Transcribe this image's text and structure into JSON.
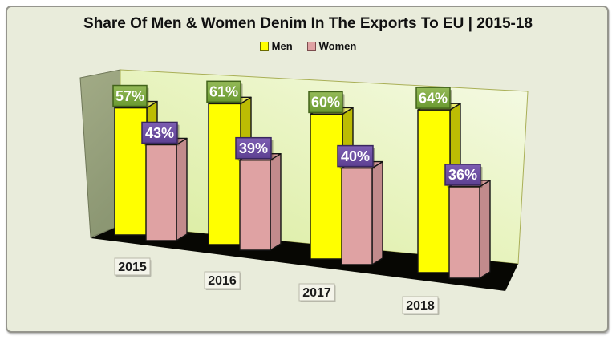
{
  "title": "Share Of Men & Women Denim In The Exports To EU | 2015-18",
  "chart_data": {
    "type": "bar",
    "style": "3d-clustered-perspective",
    "categories": [
      "2015",
      "2016",
      "2017",
      "2018"
    ],
    "series": [
      {
        "name": "Men",
        "values": [
          57,
          61,
          60,
          64
        ],
        "unit": "%",
        "bar_color": "#ffff00",
        "bar_side_color": "#bcbc03",
        "bar_top_color": "#e9e96a",
        "swatch_border": "#6b6b00",
        "label_bg_top": "#94ba58",
        "label_bg_bottom": "#6a9a31",
        "label_border": "#42631a",
        "label_text_color": "#ffffff"
      },
      {
        "name": "Women",
        "values": [
          43,
          39,
          40,
          36
        ],
        "unit": "%",
        "bar_color": "#dfa2a3",
        "bar_side_color": "#c28b8c",
        "bar_top_color": "#d29697",
        "swatch_border": "#7b4c4d",
        "label_bg_top": "#7d5eb2",
        "label_bg_bottom": "#5d4092",
        "label_border": "#39265f",
        "label_text_color": "#ffffff"
      }
    ],
    "value_label_format": "{value}%",
    "legend_position": "top-center",
    "axes_visible": false,
    "gridlines": false,
    "ylim": [
      0,
      100
    ]
  },
  "scene": {
    "background": "#e9ecdb",
    "frame_border": "#95958d",
    "back_wall_color_start": "#d8eb9c",
    "back_wall_color_mid": "#e9f4c2",
    "back_wall_color_end": "#f5fae6",
    "back_wall_border": "#a9af56",
    "left_wall_color_top": "#a2ab86",
    "left_wall_color_bottom": "#8c9773",
    "left_wall_border": "#6f7758",
    "floor_color": "#070703",
    "bar_outline": "#141414",
    "year_box_bg": "#f4f4ea",
    "year_box_border": "#b9b9aa",
    "year_text_color": "#1a1a1a",
    "title_color": "#111111",
    "legend_text_color": "#111111"
  }
}
